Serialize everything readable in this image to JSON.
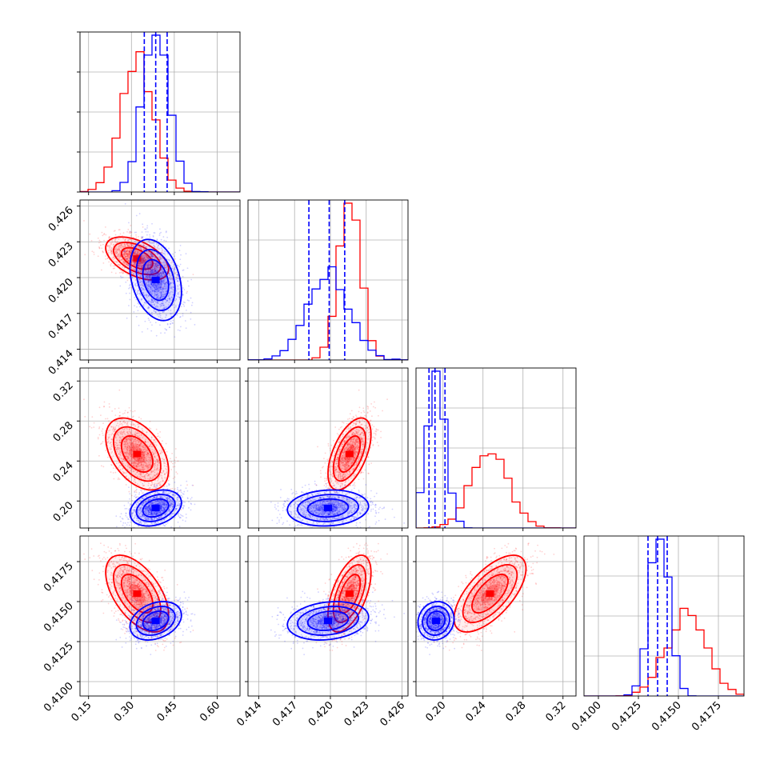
{
  "chart_data": {
    "type": "corner",
    "grid": true,
    "colors": {
      "series_a": "#ff0000",
      "series_b": "#0000ff"
    },
    "parameters": [
      {
        "ticks": [
          "0.15",
          "0.30",
          "0.45",
          "0.60"
        ],
        "tick_values": [
          0.15,
          0.3,
          0.45,
          0.6
        ],
        "range": [
          0.12,
          0.68
        ]
      },
      {
        "ticks": [
          "0.414",
          "0.417",
          "0.420",
          "0.423",
          "0.426"
        ],
        "tick_values": [
          0.414,
          0.417,
          0.42,
          0.423,
          0.426
        ],
        "range": [
          0.4131,
          0.4265
        ]
      },
      {
        "ticks": [
          "0.20",
          "0.24",
          "0.28",
          "0.32"
        ],
        "tick_values": [
          0.2,
          0.24,
          0.28,
          0.32
        ],
        "range": [
          0.173,
          0.333
        ]
      },
      {
        "ticks": [
          "0.4100",
          "0.4125",
          "0.4150",
          "0.4175"
        ],
        "tick_values": [
          0.41,
          0.4125,
          0.415,
          0.4175
        ],
        "range": [
          0.4091,
          0.4191
        ]
      }
    ],
    "series": [
      {
        "color": "#ff0000",
        "mean": [
          0.32,
          0.4216,
          0.247,
          0.4155
        ],
        "sd": [
          0.055,
          0.0009,
          0.018,
          0.0012
        ],
        "corr": [
          [
            1,
            -0.5,
            -0.45,
            -0.55
          ],
          [
            -0.5,
            1,
            0.55,
            0.55
          ],
          [
            -0.45,
            0.55,
            1,
            0.65
          ],
          [
            -0.55,
            0.55,
            0.65,
            1
          ]
        ],
        "quantile_lines": []
      },
      {
        "color": "#0000ff",
        "mean": [
          0.385,
          0.4198,
          0.193,
          0.4138
        ],
        "sd": [
          0.045,
          0.0017,
          0.009,
          0.0006
        ],
        "corr": [
          [
            1,
            -0.3,
            0.3,
            0.3
          ],
          [
            -0.3,
            1,
            0.1,
            0.2
          ],
          [
            0.3,
            0.1,
            1,
            0.1
          ],
          [
            0.3,
            0.2,
            0.1,
            1
          ]
        ],
        "quantile_lines": [
          [
            0.345,
            0.385,
            0.425
          ],
          [
            0.4182,
            0.4199,
            0.4212
          ],
          [
            0.186,
            0.192,
            0.202
          ],
          [
            0.4131,
            0.4137,
            0.4143
          ]
        ]
      }
    ],
    "hist_bins": 20,
    "contour_levels": [
      0.4,
      0.6,
      0.85
    ]
  }
}
